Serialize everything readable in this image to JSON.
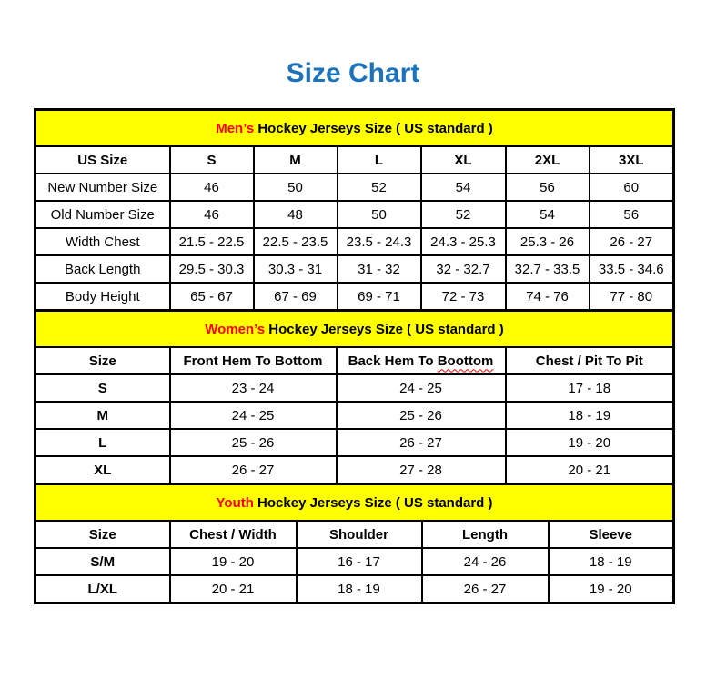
{
  "page": {
    "title": "Size Chart"
  },
  "colors": {
    "title_blue": "#1C73BC",
    "banner_yellow": "#FFFF00",
    "accent_red": "#FF0000",
    "border_black": "#000000"
  },
  "chart_data": [
    {
      "type": "table",
      "id": "mens-sizes",
      "title": "Men’s Hockey Jerseys Size ( US standard )",
      "title_highlight": "Men’s",
      "columns": [
        "US Size",
        "S",
        "M",
        "L",
        "XL",
        "2XL",
        "3XL"
      ],
      "label_bold": false,
      "rows": [
        {
          "label": "New Number Size",
          "values": [
            "46",
            "50",
            "52",
            "54",
            "56",
            "60"
          ]
        },
        {
          "label": "Old Number Size",
          "values": [
            "46",
            "48",
            "50",
            "52",
            "54",
            "56"
          ]
        },
        {
          "label": "Width Chest",
          "values": [
            "21.5 - 22.5",
            "22.5 - 23.5",
            "23.5 - 24.3",
            "24.3 - 25.3",
            "25.3 - 26",
            "26 - 27"
          ]
        },
        {
          "label": "Back Length",
          "values": [
            "29.5 - 30.3",
            "30.3 - 31",
            "31 - 32",
            "32 - 32.7",
            "32.7 - 33.5",
            "33.5 - 34.6"
          ]
        },
        {
          "label": "Body Height",
          "values": [
            "65 - 67",
            "67 - 69",
            "69 - 71",
            "72 - 73",
            "74 - 76",
            "77 - 80"
          ]
        }
      ]
    },
    {
      "type": "table",
      "id": "womens-sizes",
      "title": "Women’s Hockey Jerseys Size ( US standard )",
      "title_highlight": "Women’s",
      "columns": [
        "Size",
        "Front Hem To Bottom",
        "Back Hem To Boottom",
        "Chest / Pit To Pit"
      ],
      "spellcheck_word": "Boottom",
      "label_bold": true,
      "rows": [
        {
          "label": "S",
          "values": [
            "23 - 24",
            "24 - 25",
            "17 - 18"
          ]
        },
        {
          "label": "M",
          "values": [
            "24 - 25",
            "25 - 26",
            "18 - 19"
          ]
        },
        {
          "label": "L",
          "values": [
            "25 - 26",
            "26 - 27",
            "19 - 20"
          ]
        },
        {
          "label": "XL",
          "values": [
            "26 - 27",
            "27 - 28",
            "20 - 21"
          ]
        }
      ]
    },
    {
      "type": "table",
      "id": "youth-sizes",
      "title": "Youth Hockey Jerseys Size ( US standard )",
      "title_highlight": "Youth",
      "columns": [
        "Size",
        "Chest / Width",
        "Shoulder",
        "Length",
        "Sleeve"
      ],
      "label_bold": true,
      "rows": [
        {
          "label": "S/M",
          "values": [
            "19 - 20",
            "16 - 17",
            "24 - 26",
            "18 - 19"
          ]
        },
        {
          "label": "L/XL",
          "values": [
            "20 - 21",
            "18 - 19",
            "26 - 27",
            "19 - 20"
          ]
        }
      ]
    }
  ]
}
